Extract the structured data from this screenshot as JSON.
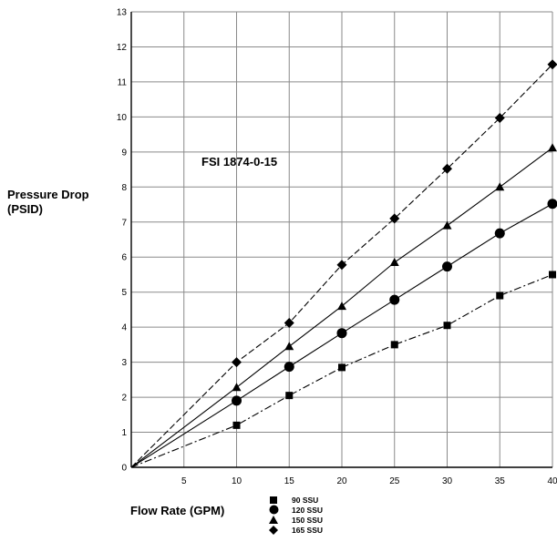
{
  "chart_data": {
    "type": "line",
    "title": "FSI 1874-0-15",
    "xlabel": "Flow Rate (GPM)",
    "ylabel_lines": [
      "Pressure Drop",
      "(PSID)"
    ],
    "xlim": [
      0,
      40
    ],
    "ylim": [
      0,
      13
    ],
    "x_ticks": [
      5,
      10,
      15,
      20,
      25,
      30,
      35,
      40
    ],
    "y_ticks": [
      0,
      1,
      2,
      3,
      4,
      5,
      6,
      7,
      8,
      9,
      10,
      11,
      12,
      13
    ],
    "grid": true,
    "legend_position": "bottom-center",
    "x": [
      0,
      10,
      15,
      20,
      25,
      30,
      35,
      40
    ],
    "series": [
      {
        "name": "90 SSU",
        "marker": "square",
        "dash": "dashdot",
        "values": [
          0,
          1.2,
          2.05,
          2.85,
          3.5,
          4.05,
          4.9,
          5.5
        ]
      },
      {
        "name": "120 SSU",
        "marker": "circle",
        "dash": "solid",
        "values": [
          0,
          1.9,
          2.87,
          3.83,
          4.78,
          5.73,
          6.68,
          7.52
        ]
      },
      {
        "name": "150 SSU",
        "marker": "triangle",
        "dash": "solid",
        "values": [
          0,
          2.28,
          3.45,
          4.6,
          5.85,
          6.9,
          8.0,
          9.12
        ]
      },
      {
        "name": "165 SSU",
        "marker": "diamond",
        "dash": "dashed",
        "values": [
          0,
          3.0,
          4.12,
          5.78,
          7.1,
          8.52,
          9.97,
          11.5
        ]
      }
    ]
  }
}
